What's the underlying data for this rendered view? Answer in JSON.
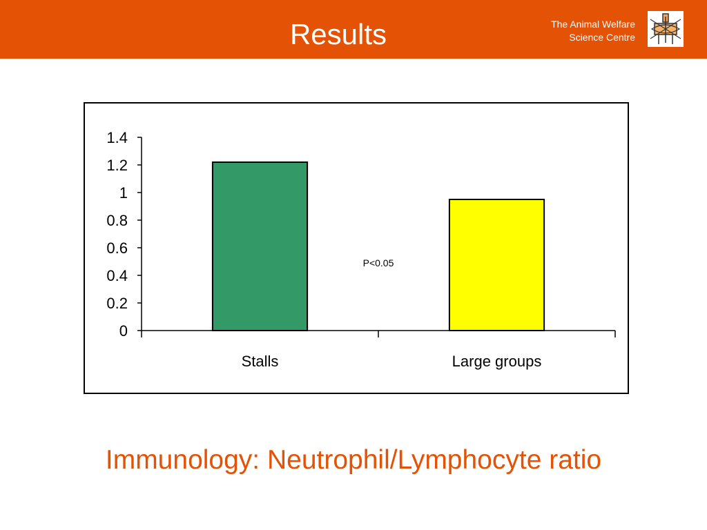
{
  "header": {
    "title": "Results",
    "org_line1": "The Animal Welfare",
    "org_line2": "Science Centre",
    "background_color": "#e35205"
  },
  "logo": {
    "icon": "animal-welfare-logo-icon"
  },
  "chart_data": {
    "type": "bar",
    "categories": [
      "Stalls",
      "Large groups"
    ],
    "values": [
      1.22,
      0.95
    ],
    "colors": [
      "#339966",
      "#ffff00"
    ],
    "ylim": [
      0,
      1.4
    ],
    "yticks": [
      "0",
      "0.2",
      "0.4",
      "0.6",
      "0.8",
      "1",
      "1.2",
      "1.4"
    ],
    "annotation": "P<0.05",
    "grid": false,
    "legend": "none"
  },
  "caption": "Immunology: Neutrophil/Lymphocyte ratio"
}
